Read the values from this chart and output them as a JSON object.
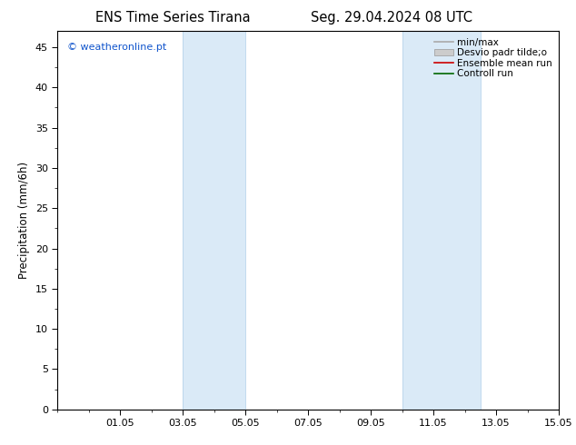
{
  "title_left": "ENS Time Series Tirana",
  "title_right": "Seg. 29.04.2024 08 UTC",
  "ylabel": "Precipitation (mm/6h)",
  "ylim": [
    0,
    47
  ],
  "yticks": [
    0,
    5,
    10,
    15,
    20,
    25,
    30,
    35,
    40,
    45
  ],
  "xlim_days": [
    0,
    16
  ],
  "xtick_positions": [
    2,
    4,
    6,
    8,
    10,
    12,
    14,
    16
  ],
  "xtick_labels": [
    "01.05",
    "03.05",
    "05.05",
    "07.05",
    "09.05",
    "11.05",
    "13.05",
    "15.05"
  ],
  "shaded_bands": [
    {
      "xmin": 4.0,
      "xmax": 6.0
    },
    {
      "xmin": 11.0,
      "xmax": 13.5
    }
  ],
  "shade_color": "#daeaf7",
  "band_edge_color": "#b8d4eb",
  "watermark": "© weatheronline.pt",
  "watermark_color": "#1155cc",
  "legend_entries": [
    {
      "label": "min/max",
      "color": "#aaaaaa",
      "lw": 1.2,
      "type": "line"
    },
    {
      "label": "Desvio padr tilde;o",
      "color": "#cccccc",
      "lw": 5,
      "type": "patch"
    },
    {
      "label": "Ensemble mean run",
      "color": "#cc0000",
      "lw": 1.2,
      "type": "line"
    },
    {
      "label": "Controll run",
      "color": "#006600",
      "lw": 1.2,
      "type": "line"
    }
  ],
  "background_color": "#ffffff",
  "title_fontsize": 10.5,
  "ylabel_fontsize": 8.5,
  "tick_fontsize": 8,
  "watermark_fontsize": 8,
  "legend_fontsize": 7.5
}
